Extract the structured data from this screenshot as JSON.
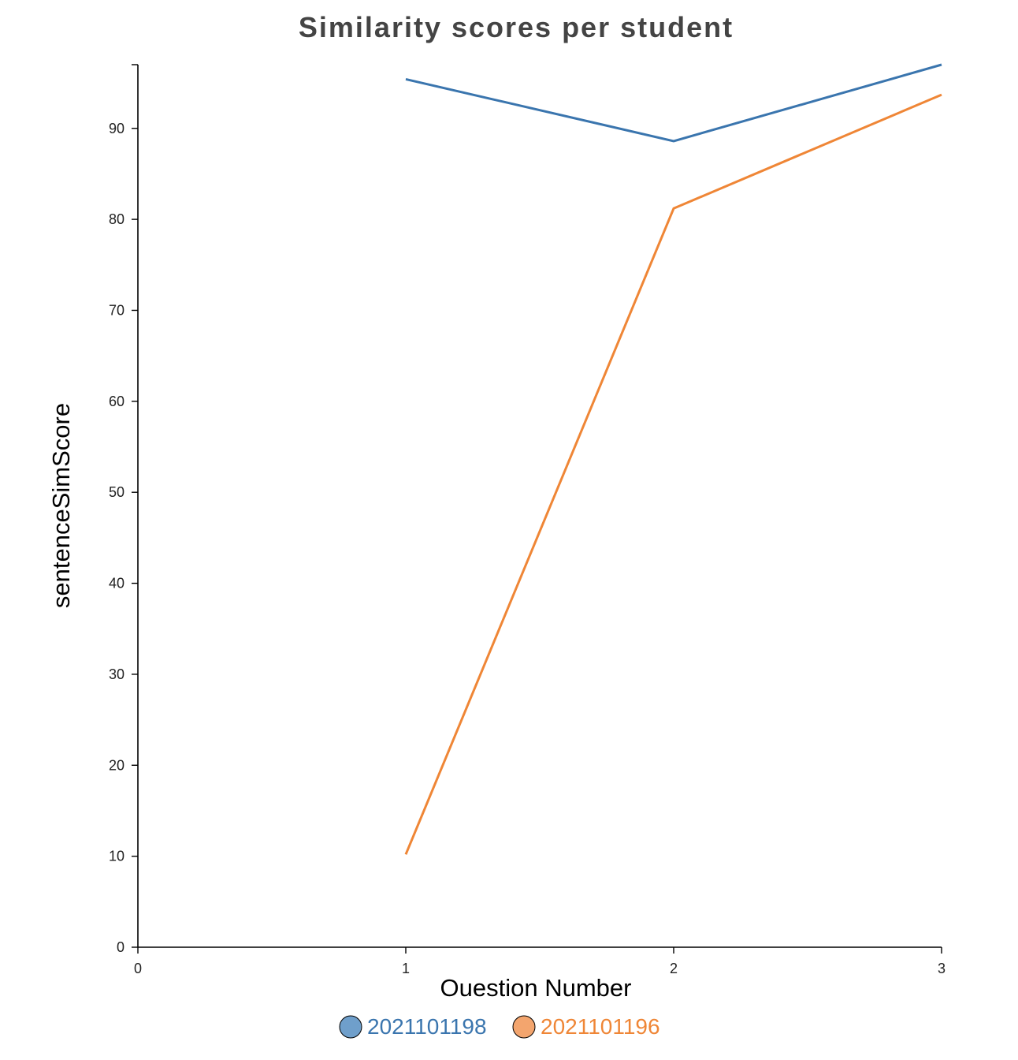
{
  "chart_data": {
    "type": "line",
    "title": "Similarity scores per student",
    "xlabel": "Ouestion Number",
    "ylabel": "sentenceSimScore",
    "xlim": [
      0,
      3
    ],
    "ylim": [
      0,
      97
    ],
    "xticks": [
      0,
      1,
      2,
      3
    ],
    "yticks": [
      0,
      10,
      20,
      30,
      40,
      50,
      60,
      70,
      80,
      90
    ],
    "grid": false,
    "legend_position": "bottom-center",
    "x": [
      1,
      2,
      3
    ],
    "series": [
      {
        "name": "2021101198",
        "color": "#3a75ae",
        "marker_color": "#6f9fcb",
        "values": [
          95.4,
          88.6,
          97.0
        ]
      },
      {
        "name": "2021101196",
        "color": "#ef8636",
        "marker_color": "#f3a56e",
        "values": [
          10.2,
          81.2,
          93.7
        ]
      }
    ]
  }
}
